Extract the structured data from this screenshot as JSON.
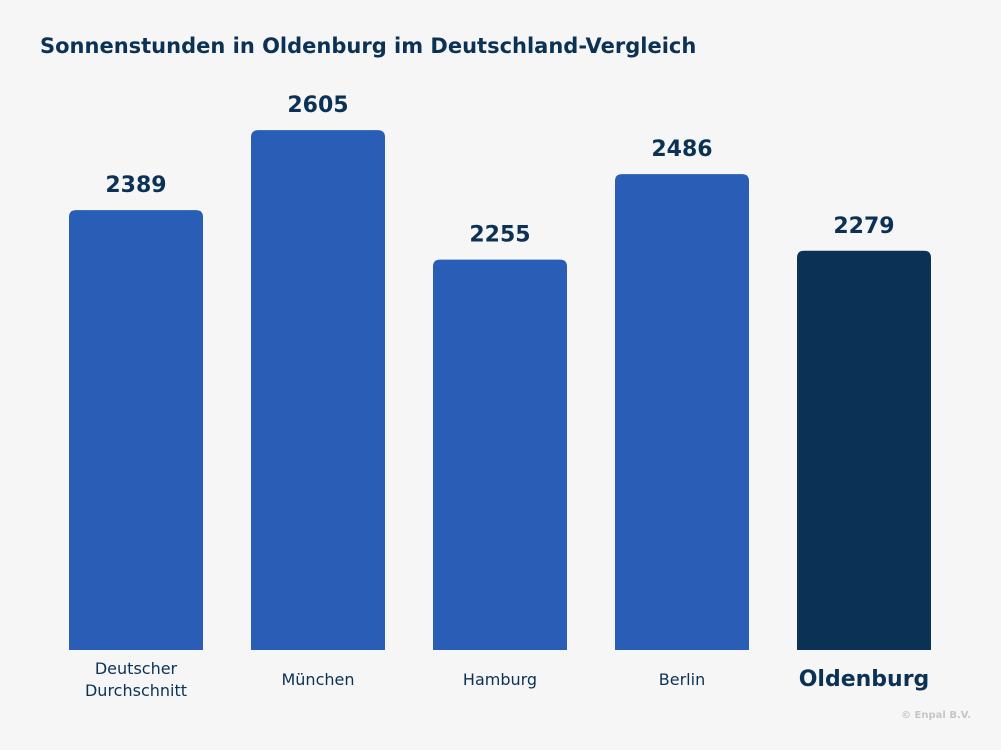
{
  "chart_data": {
    "type": "bar",
    "title": "Sonnenstunden in Oldenburg im Deutschland-Vergleich",
    "categories": [
      "Deutscher Durchschnitt",
      "München",
      "Hamburg",
      "Berlin",
      "Oldenburg"
    ],
    "values": [
      2389,
      2605,
      2255,
      2486,
      2279
    ],
    "colors": [
      "#2a5db5",
      "#2a5db5",
      "#2a5db5",
      "#2a5db5",
      "#0b3254"
    ],
    "highlight": "Oldenburg",
    "ylim": [
      1200,
      2700
    ],
    "source": "© Enpal B.V."
  }
}
